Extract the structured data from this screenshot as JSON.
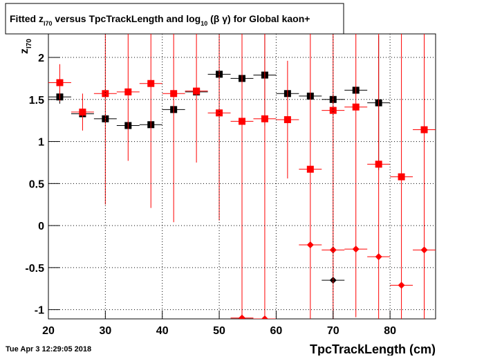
{
  "chart_data": {
    "type": "errorbar",
    "title": [
      "Fitted  z",
      "I70",
      " versus TpcTrackLength and log",
      "10",
      " (β γ) for Global kaon+"
    ],
    "y_label": [
      "z",
      "I70"
    ],
    "x_label": "TpcTrackLength (cm)",
    "timestamp": "Tue Apr  3 12:29:05 2018",
    "xlim": [
      20,
      88
    ],
    "ylim": [
      -1.11,
      2.28
    ],
    "xticks": [
      20,
      30,
      40,
      50,
      60,
      70,
      80
    ],
    "yticks": [
      -1,
      -0.5,
      0,
      0.5,
      1,
      1.5,
      2
    ],
    "grid": true,
    "xerr": 2,
    "series": [
      {
        "color": "#000000",
        "marker": "square",
        "x": [
          22,
          26,
          30,
          34,
          38,
          42,
          46,
          50,
          54,
          58,
          62,
          66,
          70,
          74,
          78
        ],
        "values": [
          1.53,
          1.33,
          1.27,
          1.19,
          1.2,
          1.38,
          1.59,
          1.8,
          1.75,
          1.79,
          1.57,
          1.54,
          1.5,
          1.61,
          1.46
        ],
        "errors": [
          0.08,
          0.03,
          0.03,
          0.03,
          0.02,
          0.03,
          0.03,
          0.03,
          0.6,
          0.6,
          0.03,
          0.03,
          0.03,
          0.03,
          0.8
        ]
      },
      {
        "color": "#000000",
        "marker": "diamond",
        "x": [
          70
        ],
        "values": [
          -0.65
        ],
        "errors": [
          0.03
        ]
      },
      {
        "color": "#ff0000",
        "marker": "square",
        "x": [
          22,
          26,
          30,
          34,
          38,
          42,
          46,
          50,
          54,
          58,
          62,
          66,
          70,
          74,
          78,
          82,
          86
        ],
        "values": [
          1.7,
          1.35,
          1.57,
          1.59,
          1.69,
          1.57,
          1.6,
          1.34,
          1.24,
          1.27,
          1.26,
          0.67,
          1.37,
          1.41,
          0.73,
          0.58,
          1.14
        ],
        "errors": [
          0.22,
          0.22,
          1.32,
          0.82,
          1.48,
          1.53,
          0.85,
          1.28,
          2.5,
          2.5,
          0.7,
          2,
          2.5,
          2.5,
          2.5,
          1.7,
          2.5
        ]
      },
      {
        "color": "#ff0000",
        "marker": "diamond",
        "x": [
          54,
          58,
          66,
          70,
          74,
          78,
          82,
          86
        ],
        "values": [
          -1.1,
          -1.11,
          -0.23,
          -0.29,
          -0.28,
          -0.37,
          -0.71,
          -0.29
        ],
        "errors": [
          0.02,
          0.02,
          0.02,
          0.02,
          0.02,
          0.02,
          0.02,
          0.02
        ]
      }
    ]
  }
}
